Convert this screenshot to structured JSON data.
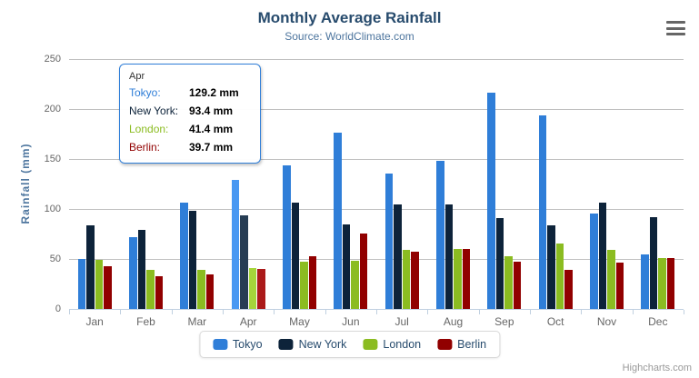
{
  "header": {
    "title": "Monthly Average Rainfall",
    "subtitle": "Source: WorldClimate.com"
  },
  "chart_data": {
    "type": "bar",
    "title": "Monthly Average Rainfall",
    "subtitle": "Source: WorldClimate.com",
    "categories": [
      "Jan",
      "Feb",
      "Mar",
      "Apr",
      "May",
      "Jun",
      "Jul",
      "Aug",
      "Sep",
      "Oct",
      "Nov",
      "Dec"
    ],
    "series": [
      {
        "name": "Tokyo",
        "color": "#2f7ed8",
        "hover_color": "#4998f2",
        "values": [
          49.9,
          71.5,
          106.4,
          129.2,
          144.0,
          176.0,
          135.6,
          148.5,
          216.4,
          194.1,
          95.6,
          54.4
        ]
      },
      {
        "name": "New York",
        "color": "#0d233a",
        "hover_color": "#273d54",
        "values": [
          83.6,
          78.8,
          98.5,
          93.4,
          106.0,
          84.5,
          105.0,
          104.3,
          91.2,
          83.5,
          106.6,
          92.3
        ]
      },
      {
        "name": "London",
        "color": "#8bbc21",
        "hover_color": "#a5d63b",
        "values": [
          48.9,
          38.8,
          39.3,
          41.4,
          47.0,
          48.3,
          59.0,
          59.6,
          52.4,
          65.2,
          59.3,
          51.2
        ]
      },
      {
        "name": "Berlin",
        "color": "#910000",
        "hover_color": "#ab1a1a",
        "values": [
          42.4,
          33.2,
          34.5,
          39.7,
          52.6,
          75.5,
          57.4,
          60.4,
          47.6,
          39.1,
          46.8,
          51.1
        ]
      }
    ],
    "xlabel": "",
    "ylabel": "Rainfall (mm)",
    "ylim": [
      0,
      250
    ],
    "ytick_interval": 50,
    "yticks": [
      0,
      50,
      100,
      150,
      200,
      250
    ],
    "grid": true,
    "legend_position": "bottom",
    "value_suffix": "mm",
    "hovered_category": "Apr",
    "hovered_category_index": 3
  },
  "tooltip": {
    "header": "Apr",
    "border_color": "#2f7ed8",
    "rows": [
      {
        "label": "Tokyo:",
        "value": "129.2 mm",
        "color": "#2f7ed8"
      },
      {
        "label": "New York:",
        "value": "93.4 mm",
        "color": "#0d233a"
      },
      {
        "label": "London:",
        "value": "41.4 mm",
        "color": "#8bbc21"
      },
      {
        "label": "Berlin:",
        "value": "39.7 mm",
        "color": "#910000"
      }
    ]
  },
  "legend": {
    "items": [
      {
        "label": "Tokyo",
        "color": "#2f7ed8"
      },
      {
        "label": "New York",
        "color": "#0d233a"
      },
      {
        "label": "London",
        "color": "#8bbc21"
      },
      {
        "label": "Berlin",
        "color": "#910000"
      }
    ]
  },
  "icons": {
    "export_menu": "hamburger-icon"
  },
  "credits": {
    "label": "Highcharts.com"
  },
  "colors": {
    "title": "#274b6d",
    "subtitle": "#4d759e",
    "axis_label": "#666666",
    "axis_line": "#c0d0e0",
    "gridline": "#c0c0c0"
  }
}
